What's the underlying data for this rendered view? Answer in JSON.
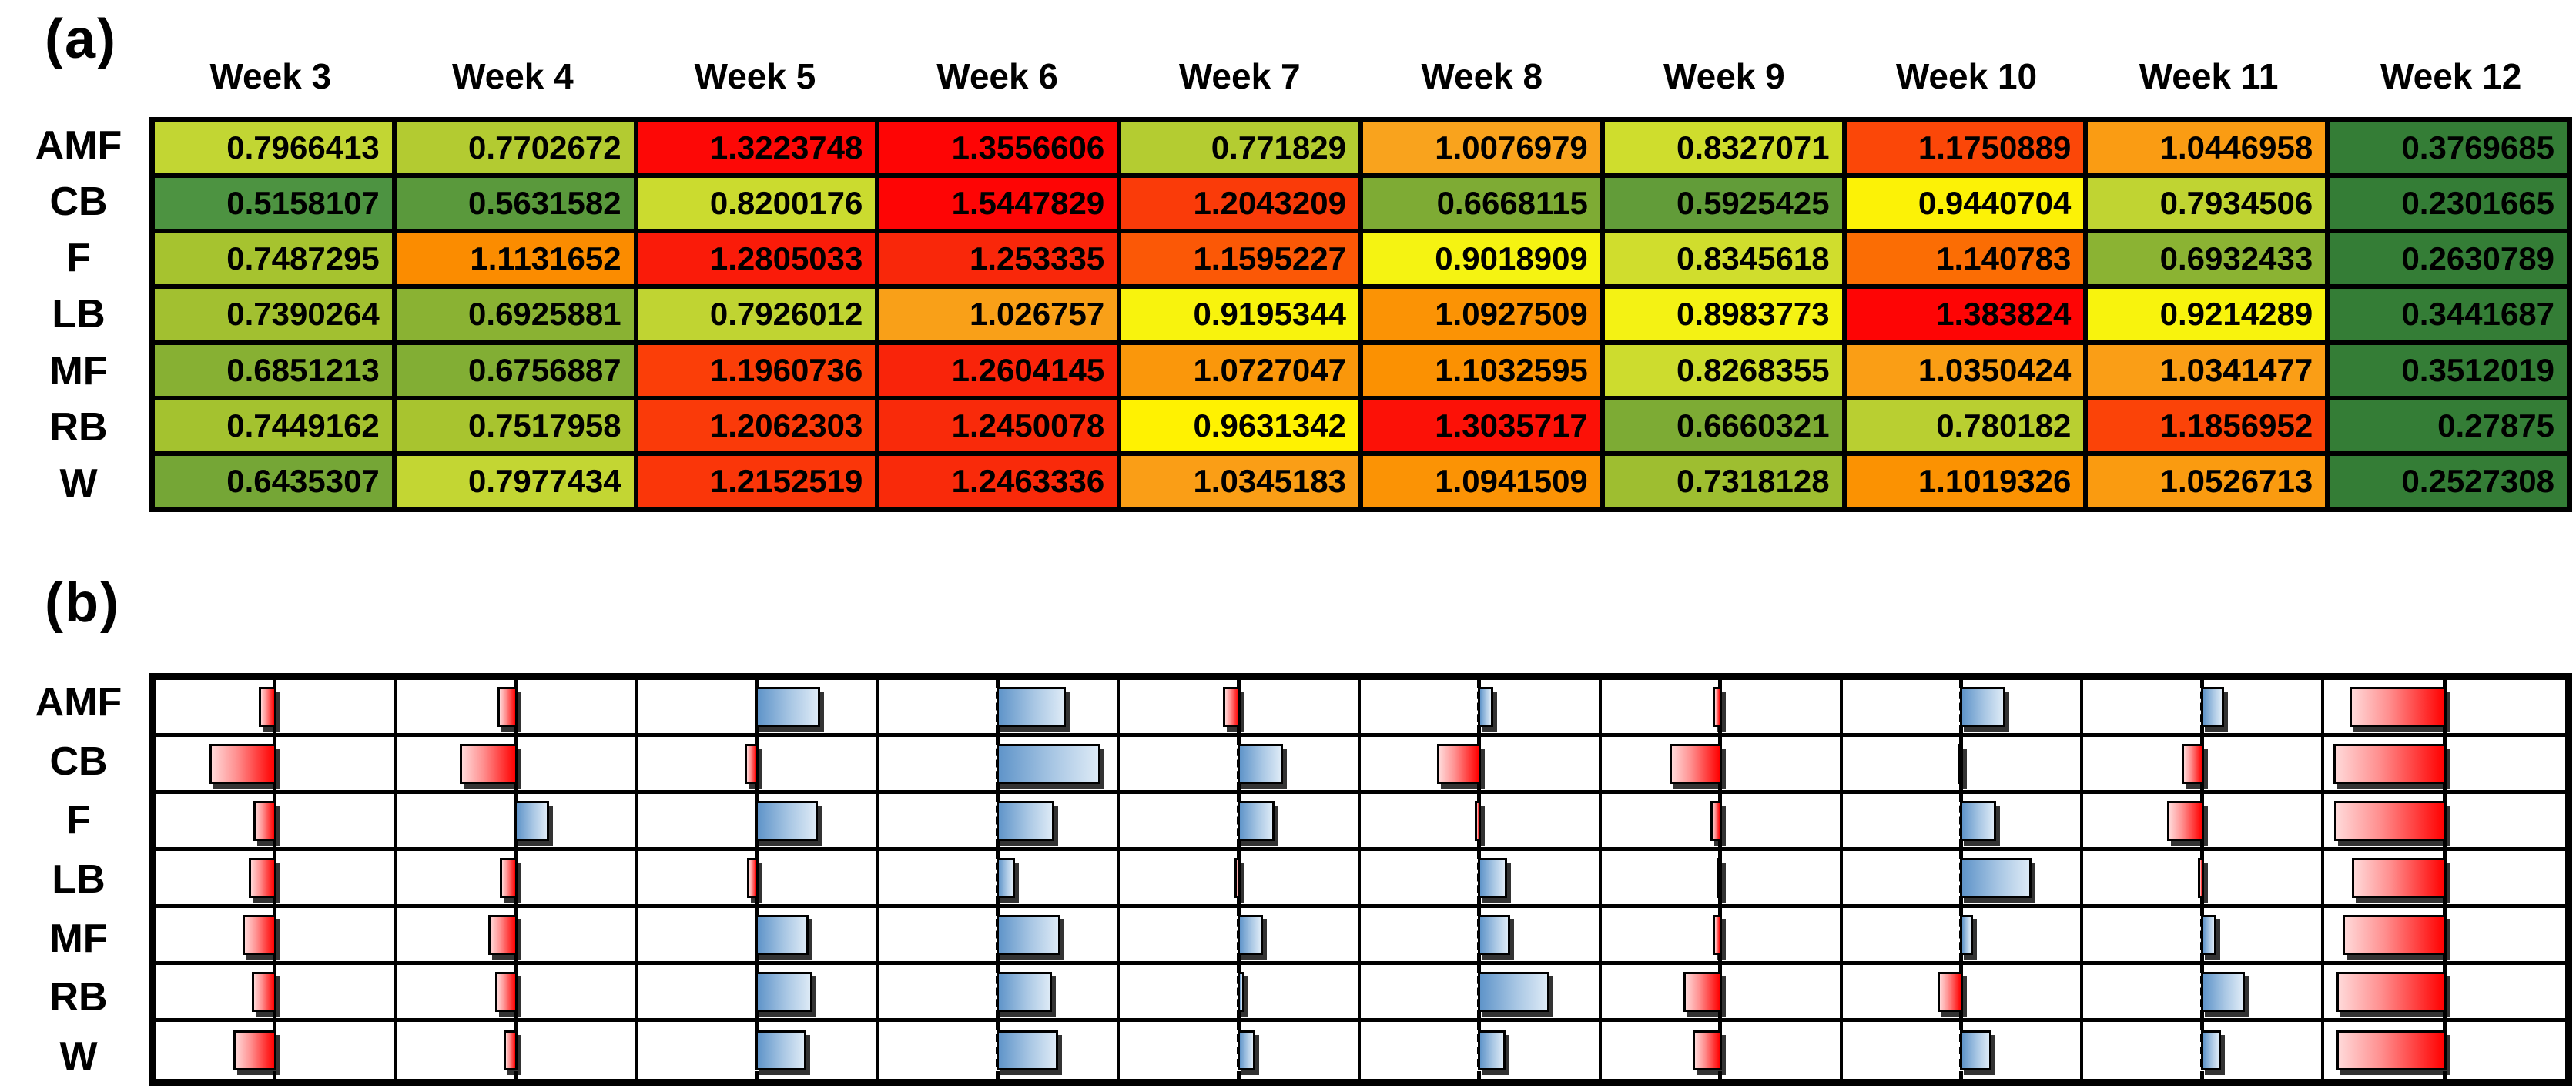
{
  "panels": {
    "a_label": "(a)",
    "b_label": "(b)"
  },
  "colors": {
    "background": "#ffffff",
    "grid": "#000000",
    "text": "#000000",
    "bar_red": "#ff0000",
    "bar_red_light": "#ffd9d9",
    "bar_blue": "#5f94c9",
    "bar_blue_light": "#ddeaf6",
    "heatmap_low": "#347d36",
    "heatmap_mid": "#fff200",
    "heatmap_high": "#fe0505"
  },
  "chart_data": [
    {
      "type": "heatmap",
      "title": "(a)",
      "categories": [
        "Week 3",
        "Week 4",
        "Week 5",
        "Week 6",
        "Week 7",
        "Week 8",
        "Week 9",
        "Week 10",
        "Week 11",
        "Week 12"
      ],
      "rows": [
        "AMF",
        "CB",
        "F",
        "LB",
        "MF",
        "RB",
        "W"
      ],
      "values": [
        [
          "0.7966413",
          "0.7702672",
          "1.3223748",
          "1.3556606",
          "0.771829",
          "1.0076979",
          "0.8327071",
          "1.1750889",
          "1.0446958",
          "0.3769685"
        ],
        [
          "0.5158107",
          "0.5631582",
          "0.8200176",
          "1.5447829",
          "1.2043209",
          "0.6668115",
          "0.5925425",
          "0.9440704",
          "0.7934506",
          "0.2301665"
        ],
        [
          "0.7487295",
          "1.1131652",
          "1.2805033",
          "1.253335",
          "1.1595227",
          "0.9018909",
          "0.8345618",
          "1.140783",
          "0.6932433",
          "0.2630789"
        ],
        [
          "0.7390264",
          "0.6925881",
          "0.7926012",
          "1.026757",
          "0.9195344",
          "1.0927509",
          "0.8983773",
          "1.383824",
          "0.9214289",
          "0.3441687"
        ],
        [
          "0.6851213",
          "0.6756887",
          "1.1960736",
          "1.2604145",
          "1.0727047",
          "1.1032595",
          "0.8268355",
          "1.0350424",
          "1.0341477",
          "0.3512019"
        ],
        [
          "0.7449162",
          "0.7517958",
          "1.2062303",
          "1.2450078",
          "0.9631342",
          "1.3035717",
          "0.6660321",
          "0.780182",
          "1.1856952",
          "0.27875"
        ],
        [
          "0.6435307",
          "0.7977434",
          "1.2152519",
          "1.2463336",
          "1.0345183",
          "1.0941509",
          "0.7318128",
          "1.1019326",
          "1.0526713",
          "0.2527308"
        ]
      ],
      "color_scale_stops": [
        [
          0.38,
          "#347d36"
        ],
        [
          0.52,
          "#4e9441"
        ],
        [
          0.6,
          "#649d38"
        ],
        [
          0.67,
          "#7fac34"
        ],
        [
          0.75,
          "#a7c32f"
        ],
        [
          0.8,
          "#c4d733"
        ],
        [
          0.85,
          "#d5e02a"
        ],
        [
          0.9,
          "#f5f313"
        ],
        [
          0.965,
          "#fff200"
        ],
        [
          1.005,
          "#f9a41e"
        ],
        [
          1.11,
          "#fb9000"
        ],
        [
          1.175,
          "#fb4708"
        ],
        [
          1.26,
          "#f9240a"
        ],
        [
          1.33,
          "#fe0505"
        ]
      ]
    },
    {
      "type": "bar",
      "title": "(b)",
      "categories": [
        "Week 3",
        "Week 4",
        "Week 5",
        "Week 6",
        "Week 7",
        "Week 8",
        "Week 9",
        "Week 10",
        "Week 11",
        "Week 12"
      ],
      "rows": [
        "AMF",
        "CB",
        "F",
        "LB",
        "MF",
        "RB",
        "W"
      ],
      "reference_line": "dashed vertical line at center of each week cell",
      "bar_format": [
        "direction: L = red bar extending left of dashed line, R = blue bar extending right",
        "length: fraction of half cell width"
      ],
      "series": [
        {
          "name": "AMF",
          "bars": [
            [
              "L",
              0.15
            ],
            [
              "L",
              0.17
            ],
            [
              "R",
              0.56
            ],
            [
              "R",
              0.6
            ],
            [
              "L",
              0.15
            ],
            [
              "R",
              0.13
            ],
            [
              "L",
              0.08
            ],
            [
              "R",
              0.39
            ],
            [
              "R",
              0.2
            ],
            [
              "L",
              0.84
            ]
          ]
        },
        {
          "name": "CB",
          "bars": [
            [
              "L",
              0.58
            ],
            [
              "L",
              0.5
            ],
            [
              "L",
              0.12
            ],
            [
              "R",
              0.9
            ],
            [
              "R",
              0.39
            ],
            [
              "L",
              0.38
            ],
            [
              "L",
              0.45
            ],
            [
              "L",
              0.04
            ],
            [
              "L",
              0.19
            ],
            [
              "L",
              0.98
            ]
          ]
        },
        {
          "name": "F",
          "bars": [
            [
              "L",
              0.2
            ],
            [
              "R",
              0.3
            ],
            [
              "R",
              0.54
            ],
            [
              "R",
              0.5
            ],
            [
              "R",
              0.32
            ],
            [
              "L",
              0.05
            ],
            [
              "L",
              0.1
            ],
            [
              "R",
              0.31
            ],
            [
              "L",
              0.32
            ],
            [
              "L",
              0.97
            ]
          ]
        },
        {
          "name": "LB",
          "bars": [
            [
              "L",
              0.24
            ],
            [
              "L",
              0.15
            ],
            [
              "L",
              0.1
            ],
            [
              "R",
              0.16
            ],
            [
              "L",
              0.05
            ],
            [
              "R",
              0.25
            ],
            [
              "L",
              0.04
            ],
            [
              "R",
              0.62
            ],
            [
              "L",
              0.05
            ],
            [
              "L",
              0.82
            ]
          ]
        },
        {
          "name": "MF",
          "bars": [
            [
              "L",
              0.29
            ],
            [
              "L",
              0.25
            ],
            [
              "R",
              0.46
            ],
            [
              "R",
              0.55
            ],
            [
              "R",
              0.22
            ],
            [
              "R",
              0.28
            ],
            [
              "L",
              0.08
            ],
            [
              "R",
              0.11
            ],
            [
              "R",
              0.13
            ],
            [
              "L",
              0.9
            ]
          ]
        },
        {
          "name": "RB",
          "bars": [
            [
              "L",
              0.21
            ],
            [
              "L",
              0.19
            ],
            [
              "R",
              0.49
            ],
            [
              "R",
              0.48
            ],
            [
              "R",
              0.06
            ],
            [
              "R",
              0.62
            ],
            [
              "L",
              0.33
            ],
            [
              "L",
              0.22
            ],
            [
              "R",
              0.38
            ],
            [
              "L",
              0.95
            ]
          ]
        },
        {
          "name": "W",
          "bars": [
            [
              "L",
              0.37
            ],
            [
              "L",
              0.12
            ],
            [
              "R",
              0.44
            ],
            [
              "R",
              0.53
            ],
            [
              "R",
              0.15
            ],
            [
              "R",
              0.24
            ],
            [
              "L",
              0.25
            ],
            [
              "R",
              0.27
            ],
            [
              "R",
              0.17
            ],
            [
              "L",
              0.95
            ]
          ]
        }
      ]
    }
  ]
}
